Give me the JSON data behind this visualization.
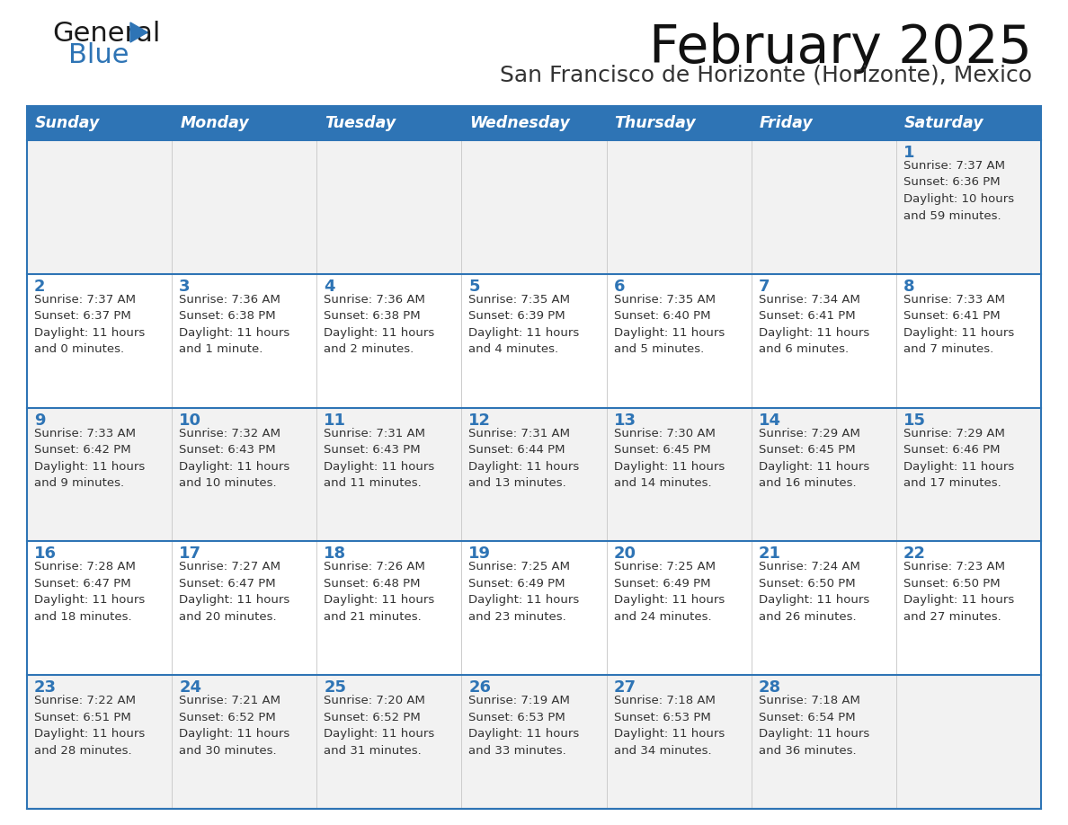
{
  "title": "February 2025",
  "subtitle": "San Francisco de Horizonte (Horizonte), Mexico",
  "header_bg": "#2E74B5",
  "header_text_color": "#FFFFFF",
  "row_bg_light": "#F2F2F2",
  "row_bg_white": "#FFFFFF",
  "day_number_color": "#2E74B5",
  "text_color": "#333333",
  "border_color": "#2E74B5",
  "days_of_week": [
    "Sunday",
    "Monday",
    "Tuesday",
    "Wednesday",
    "Thursday",
    "Friday",
    "Saturday"
  ],
  "weeks": [
    [
      {
        "day": "",
        "info": ""
      },
      {
        "day": "",
        "info": ""
      },
      {
        "day": "",
        "info": ""
      },
      {
        "day": "",
        "info": ""
      },
      {
        "day": "",
        "info": ""
      },
      {
        "day": "",
        "info": ""
      },
      {
        "day": "1",
        "info": "Sunrise: 7:37 AM\nSunset: 6:36 PM\nDaylight: 10 hours\nand 59 minutes."
      }
    ],
    [
      {
        "day": "2",
        "info": "Sunrise: 7:37 AM\nSunset: 6:37 PM\nDaylight: 11 hours\nand 0 minutes."
      },
      {
        "day": "3",
        "info": "Sunrise: 7:36 AM\nSunset: 6:38 PM\nDaylight: 11 hours\nand 1 minute."
      },
      {
        "day": "4",
        "info": "Sunrise: 7:36 AM\nSunset: 6:38 PM\nDaylight: 11 hours\nand 2 minutes."
      },
      {
        "day": "5",
        "info": "Sunrise: 7:35 AM\nSunset: 6:39 PM\nDaylight: 11 hours\nand 4 minutes."
      },
      {
        "day": "6",
        "info": "Sunrise: 7:35 AM\nSunset: 6:40 PM\nDaylight: 11 hours\nand 5 minutes."
      },
      {
        "day": "7",
        "info": "Sunrise: 7:34 AM\nSunset: 6:41 PM\nDaylight: 11 hours\nand 6 minutes."
      },
      {
        "day": "8",
        "info": "Sunrise: 7:33 AM\nSunset: 6:41 PM\nDaylight: 11 hours\nand 7 minutes."
      }
    ],
    [
      {
        "day": "9",
        "info": "Sunrise: 7:33 AM\nSunset: 6:42 PM\nDaylight: 11 hours\nand 9 minutes."
      },
      {
        "day": "10",
        "info": "Sunrise: 7:32 AM\nSunset: 6:43 PM\nDaylight: 11 hours\nand 10 minutes."
      },
      {
        "day": "11",
        "info": "Sunrise: 7:31 AM\nSunset: 6:43 PM\nDaylight: 11 hours\nand 11 minutes."
      },
      {
        "day": "12",
        "info": "Sunrise: 7:31 AM\nSunset: 6:44 PM\nDaylight: 11 hours\nand 13 minutes."
      },
      {
        "day": "13",
        "info": "Sunrise: 7:30 AM\nSunset: 6:45 PM\nDaylight: 11 hours\nand 14 minutes."
      },
      {
        "day": "14",
        "info": "Sunrise: 7:29 AM\nSunset: 6:45 PM\nDaylight: 11 hours\nand 16 minutes."
      },
      {
        "day": "15",
        "info": "Sunrise: 7:29 AM\nSunset: 6:46 PM\nDaylight: 11 hours\nand 17 minutes."
      }
    ],
    [
      {
        "day": "16",
        "info": "Sunrise: 7:28 AM\nSunset: 6:47 PM\nDaylight: 11 hours\nand 18 minutes."
      },
      {
        "day": "17",
        "info": "Sunrise: 7:27 AM\nSunset: 6:47 PM\nDaylight: 11 hours\nand 20 minutes."
      },
      {
        "day": "18",
        "info": "Sunrise: 7:26 AM\nSunset: 6:48 PM\nDaylight: 11 hours\nand 21 minutes."
      },
      {
        "day": "19",
        "info": "Sunrise: 7:25 AM\nSunset: 6:49 PM\nDaylight: 11 hours\nand 23 minutes."
      },
      {
        "day": "20",
        "info": "Sunrise: 7:25 AM\nSunset: 6:49 PM\nDaylight: 11 hours\nand 24 minutes."
      },
      {
        "day": "21",
        "info": "Sunrise: 7:24 AM\nSunset: 6:50 PM\nDaylight: 11 hours\nand 26 minutes."
      },
      {
        "day": "22",
        "info": "Sunrise: 7:23 AM\nSunset: 6:50 PM\nDaylight: 11 hours\nand 27 minutes."
      }
    ],
    [
      {
        "day": "23",
        "info": "Sunrise: 7:22 AM\nSunset: 6:51 PM\nDaylight: 11 hours\nand 28 minutes."
      },
      {
        "day": "24",
        "info": "Sunrise: 7:21 AM\nSunset: 6:52 PM\nDaylight: 11 hours\nand 30 minutes."
      },
      {
        "day": "25",
        "info": "Sunrise: 7:20 AM\nSunset: 6:52 PM\nDaylight: 11 hours\nand 31 minutes."
      },
      {
        "day": "26",
        "info": "Sunrise: 7:19 AM\nSunset: 6:53 PM\nDaylight: 11 hours\nand 33 minutes."
      },
      {
        "day": "27",
        "info": "Sunrise: 7:18 AM\nSunset: 6:53 PM\nDaylight: 11 hours\nand 34 minutes."
      },
      {
        "day": "28",
        "info": "Sunrise: 7:18 AM\nSunset: 6:54 PM\nDaylight: 11 hours\nand 36 minutes."
      },
      {
        "day": "",
        "info": ""
      }
    ]
  ],
  "logo_general_color": "#1a1a1a",
  "logo_blue_color": "#2E74B5",
  "logo_triangle_color": "#2E74B5",
  "title_fontsize": 42,
  "subtitle_fontsize": 18,
  "header_fontsize": 12.5,
  "day_num_fontsize": 13,
  "info_fontsize": 9.5,
  "logo_fontsize": 22,
  "figwidth": 11.88,
  "figheight": 9.18,
  "dpi": 100
}
